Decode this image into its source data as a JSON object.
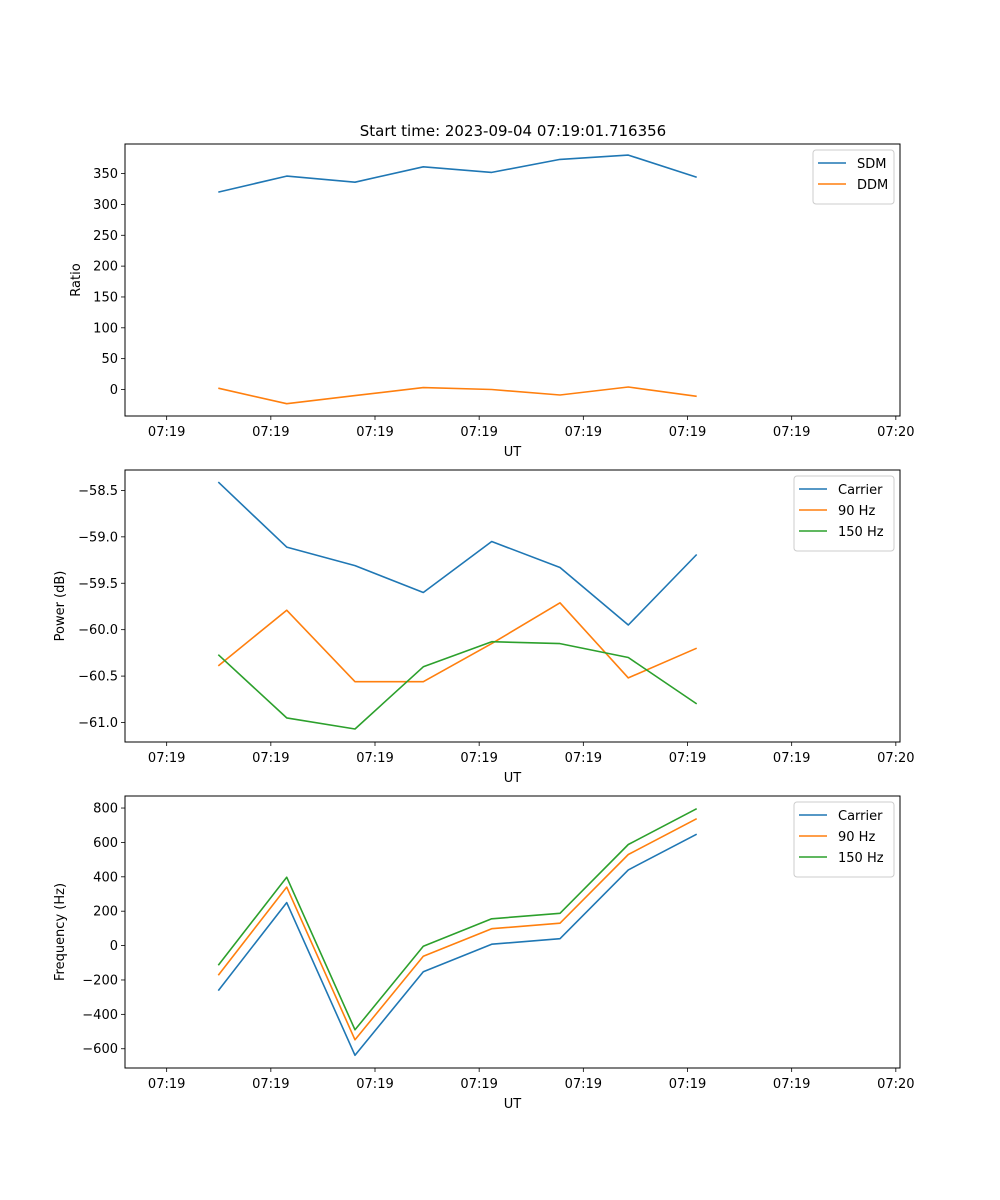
{
  "figure": {
    "suptitle": "Start time: 2023-09-04 07:19:01.716356"
  },
  "colors": {
    "blue": "#1f77b4",
    "orange": "#ff7f0e",
    "green": "#2ca02c"
  },
  "chart_data": [
    {
      "type": "line",
      "title": "Start time: 2023-09-04 07:19:01.716356",
      "xlabel": "UT",
      "ylabel": "Ratio",
      "xlim": [
        -0.5,
        8.8
      ],
      "ylim": [
        -43,
        398
      ],
      "xticks": [
        {
          "value": 0,
          "label": "07:19"
        },
        {
          "value": 1.25,
          "label": "07:19"
        },
        {
          "value": 2.5,
          "label": "07:19"
        },
        {
          "value": 3.75,
          "label": "07:19"
        },
        {
          "value": 5,
          "label": "07:19"
        },
        {
          "value": 6.25,
          "label": "07:19"
        },
        {
          "value": 7.5,
          "label": "07:19"
        },
        {
          "value": 8.75,
          "label": "07:20"
        }
      ],
      "yticks": [
        {
          "value": 350,
          "label": "350"
        },
        {
          "value": 300,
          "label": "300"
        },
        {
          "value": 250,
          "label": "250"
        },
        {
          "value": 200,
          "label": "200"
        },
        {
          "value": 150,
          "label": "150"
        },
        {
          "value": 100,
          "label": "100"
        },
        {
          "value": 50,
          "label": "50"
        },
        {
          "value": 0,
          "label": "0"
        }
      ],
      "x": [
        0.62,
        1.44,
        2.26,
        3.08,
        3.9,
        4.72,
        5.54,
        6.36
      ],
      "series": [
        {
          "name": "SDM",
          "color": "#1f77b4",
          "values": [
            320,
            346,
            336,
            361,
            352,
            373,
            380,
            344
          ]
        },
        {
          "name": "DDM",
          "color": "#ff7f0e",
          "values": [
            2,
            -23,
            -10,
            3,
            0,
            -9,
            4,
            -11
          ]
        }
      ],
      "legend": "upper right"
    },
    {
      "type": "line",
      "title": "",
      "xlabel": "UT",
      "ylabel": "Power (dB)",
      "xlim": [
        -0.5,
        8.8
      ],
      "ylim": [
        -61.21,
        -58.28
      ],
      "xticks": [
        {
          "value": 0,
          "label": "07:19"
        },
        {
          "value": 1.25,
          "label": "07:19"
        },
        {
          "value": 2.5,
          "label": "07:19"
        },
        {
          "value": 3.75,
          "label": "07:19"
        },
        {
          "value": 5,
          "label": "07:19"
        },
        {
          "value": 6.25,
          "label": "07:19"
        },
        {
          "value": 7.5,
          "label": "07:19"
        },
        {
          "value": 8.75,
          "label": "07:20"
        }
      ],
      "yticks": [
        {
          "value": -58.5,
          "label": "−58.5"
        },
        {
          "value": -59.0,
          "label": "−59.0"
        },
        {
          "value": -59.5,
          "label": "−59.5"
        },
        {
          "value": -60.0,
          "label": "−60.0"
        },
        {
          "value": -60.5,
          "label": "−60.5"
        },
        {
          "value": -61.0,
          "label": "−61.0"
        }
      ],
      "x": [
        0.62,
        1.44,
        2.26,
        3.08,
        3.9,
        4.72,
        5.54,
        6.36
      ],
      "series": [
        {
          "name": "Carrier",
          "color": "#1f77b4",
          "values": [
            -58.41,
            -59.11,
            -59.31,
            -59.6,
            -59.05,
            -59.33,
            -59.95,
            -59.19
          ]
        },
        {
          "name": "90 Hz",
          "color": "#ff7f0e",
          "values": [
            -60.39,
            -59.79,
            -60.56,
            -60.56,
            -60.15,
            -59.71,
            -60.52,
            -60.2
          ]
        },
        {
          "name": "150 Hz",
          "color": "#2ca02c",
          "values": [
            -60.27,
            -60.95,
            -61.07,
            -60.4,
            -60.13,
            -60.15,
            -60.3,
            -60.8
          ]
        }
      ],
      "legend": "upper right"
    },
    {
      "type": "line",
      "title": "",
      "xlabel": "UT",
      "ylabel": "Frequency (Hz)",
      "xlim": [
        -0.5,
        8.8
      ],
      "ylim": [
        -712,
        870
      ],
      "xticks": [
        {
          "value": 0,
          "label": "07:19"
        },
        {
          "value": 1.25,
          "label": "07:19"
        },
        {
          "value": 2.5,
          "label": "07:19"
        },
        {
          "value": 3.75,
          "label": "07:19"
        },
        {
          "value": 5,
          "label": "07:19"
        },
        {
          "value": 6.25,
          "label": "07:19"
        },
        {
          "value": 7.5,
          "label": "07:19"
        },
        {
          "value": 8.75,
          "label": "07:20"
        }
      ],
      "yticks": [
        {
          "value": 800,
          "label": "800"
        },
        {
          "value": 600,
          "label": "600"
        },
        {
          "value": 400,
          "label": "400"
        },
        {
          "value": 200,
          "label": "200"
        },
        {
          "value": 0,
          "label": "0"
        },
        {
          "value": -200,
          "label": "−200"
        },
        {
          "value": -400,
          "label": "−400"
        },
        {
          "value": -600,
          "label": "−600"
        }
      ],
      "x": [
        0.62,
        1.44,
        2.26,
        3.08,
        3.9,
        4.72,
        5.54,
        6.36
      ],
      "series": [
        {
          "name": "Carrier",
          "color": "#1f77b4",
          "values": [
            -262,
            250,
            -638,
            -152,
            8,
            40,
            440,
            648
          ]
        },
        {
          "name": "90 Hz",
          "color": "#ff7f0e",
          "values": [
            -172,
            340,
            -548,
            -62,
            98,
            130,
            530,
            738
          ]
        },
        {
          "name": "150 Hz",
          "color": "#2ca02c",
          "values": [
            -114,
            398,
            -490,
            -4,
            156,
            188,
            588,
            796
          ]
        }
      ],
      "legend": "upper right"
    }
  ]
}
